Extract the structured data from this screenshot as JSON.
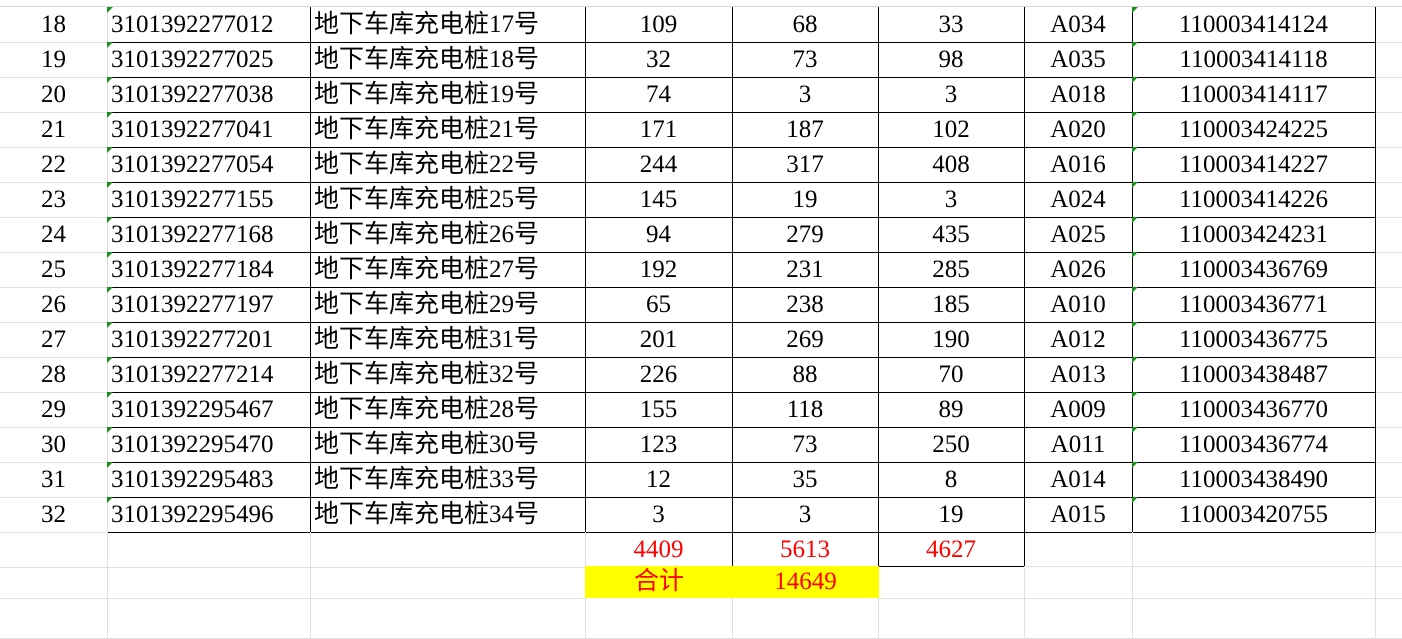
{
  "rows": [
    [
      "18",
      "3101392277012",
      "地下车库充电桩17号",
      "109",
      "68",
      "33",
      "A034",
      "110003414124"
    ],
    [
      "19",
      "3101392277025",
      "地下车库充电桩18号",
      "32",
      "73",
      "98",
      "A035",
      "110003414118"
    ],
    [
      "20",
      "3101392277038",
      "地下车库充电桩19号",
      "74",
      "3",
      "3",
      "A018",
      "110003414117"
    ],
    [
      "21",
      "3101392277041",
      "地下车库充电桩21号",
      "171",
      "187",
      "102",
      "A020",
      "110003424225"
    ],
    [
      "22",
      "3101392277054",
      "地下车库充电桩22号",
      "244",
      "317",
      "408",
      "A016",
      "110003414227"
    ],
    [
      "23",
      "3101392277155",
      "地下车库充电桩25号",
      "145",
      "19",
      "3",
      "A024",
      "110003414226"
    ],
    [
      "24",
      "3101392277168",
      "地下车库充电桩26号",
      "94",
      "279",
      "435",
      "A025",
      "110003424231"
    ],
    [
      "25",
      "3101392277184",
      "地下车库充电桩27号",
      "192",
      "231",
      "285",
      "A026",
      "110003436769"
    ],
    [
      "26",
      "3101392277197",
      "地下车库充电桩29号",
      "65",
      "238",
      "185",
      "A010",
      "110003436771"
    ],
    [
      "27",
      "3101392277201",
      "地下车库充电桩31号",
      "201",
      "269",
      "190",
      "A012",
      "110003436775"
    ],
    [
      "28",
      "3101392277214",
      "地下车库充电桩32号",
      "226",
      "88",
      "70",
      "A013",
      "110003438487"
    ],
    [
      "29",
      "3101392295467",
      "地下车库充电桩28号",
      "155",
      "118",
      "89",
      "A009",
      "110003436770"
    ],
    [
      "30",
      "3101392295470",
      "地下车库充电桩30号",
      "123",
      "73",
      "250",
      "A011",
      "110003436774"
    ],
    [
      "31",
      "3101392295483",
      "地下车库充电桩33号",
      "12",
      "35",
      "8",
      "A014",
      "110003438490"
    ],
    [
      "32",
      "3101392295496",
      "地下车库充电桩34号",
      "3",
      "3",
      "19",
      "A015",
      "110003420755"
    ]
  ],
  "subtotals": [
    "4409",
    "5613",
    "4627"
  ],
  "total": {
    "label": "合计",
    "value": "14649"
  },
  "colors": {
    "total_text": "#ff0000",
    "total_highlight": "#ffff00",
    "border": "#000000",
    "gridline": "#e0e0e0",
    "text_cell_marker": "#1a8f1a"
  }
}
